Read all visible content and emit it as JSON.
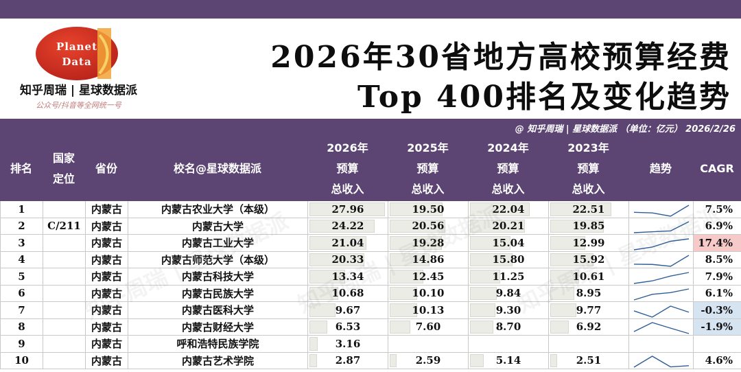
{
  "brand": {
    "logo_line1": "Planet",
    "logo_line2": "Data",
    "name": "知乎周瑞 | 星球数据派",
    "sub": "公众号/抖音等全网统一号"
  },
  "title": {
    "line1": "2026年30省地方高校预算经费",
    "line2": "Top 400排名及变化趋势"
  },
  "credit": "@ 知乎周瑞 | 星球数据派 （单位：亿元） 2026/2/26",
  "colors": {
    "header_bg": "#5c4573",
    "bar_fill": "#ecece6",
    "cagr_high": "#f7caca",
    "cagr_negative": "#d6e3f1",
    "sparkline": "#2e5e98"
  },
  "columns": [
    {
      "key": "rank",
      "lines": [
        "排名"
      ]
    },
    {
      "key": "type",
      "lines": [
        "国家",
        "定位"
      ]
    },
    {
      "key": "province",
      "lines": [
        "省份"
      ]
    },
    {
      "key": "school",
      "lines": [
        "校名@星球数据派"
      ]
    },
    {
      "key": "y2026",
      "lines": [
        "2026年",
        "预算",
        "总收入"
      ]
    },
    {
      "key": "y2025",
      "lines": [
        "2025年",
        "预算",
        "总收入"
      ]
    },
    {
      "key": "y2024",
      "lines": [
        "2024年",
        "预算",
        "总收入"
      ]
    },
    {
      "key": "y2023",
      "lines": [
        "2023年",
        "预算",
        "总收入"
      ]
    },
    {
      "key": "trend",
      "lines": [
        "趋势"
      ]
    },
    {
      "key": "cagr",
      "lines": [
        "CAGR"
      ]
    }
  ],
  "rows": [
    {
      "rank": "1",
      "type": "",
      "province": "内蒙古",
      "school": "内蒙古农业大学（本级）",
      "y2026": "27.96",
      "y2025": "19.50",
      "y2024": "22.04",
      "y2023": "22.51",
      "cagr": "7.5%",
      "cagr_style": "normal"
    },
    {
      "rank": "2",
      "type": "C/211",
      "province": "内蒙古",
      "school": "内蒙古大学",
      "y2026": "24.22",
      "y2025": "20.56",
      "y2024": "20.21",
      "y2023": "19.85",
      "cagr": "6.9%",
      "cagr_style": "normal"
    },
    {
      "rank": "3",
      "type": "",
      "province": "内蒙古",
      "school": "内蒙古工业大学",
      "y2026": "21.04",
      "y2025": "19.28",
      "y2024": "15.04",
      "y2023": "12.99",
      "cagr": "17.4%",
      "cagr_style": "high"
    },
    {
      "rank": "4",
      "type": "",
      "province": "内蒙古",
      "school": "内蒙古师范大学（本级）",
      "y2026": "20.33",
      "y2025": "14.86",
      "y2024": "15.80",
      "y2023": "15.92",
      "cagr": "8.5%",
      "cagr_style": "normal"
    },
    {
      "rank": "5",
      "type": "",
      "province": "内蒙古",
      "school": "内蒙古科技大学",
      "y2026": "13.34",
      "y2025": "12.45",
      "y2024": "11.25",
      "y2023": "10.61",
      "cagr": "7.9%",
      "cagr_style": "normal"
    },
    {
      "rank": "6",
      "type": "",
      "province": "内蒙古",
      "school": "内蒙古民族大学",
      "y2026": "10.68",
      "y2025": "10.10",
      "y2024": "9.84",
      "y2023": "8.95",
      "cagr": "6.1%",
      "cagr_style": "normal"
    },
    {
      "rank": "7",
      "type": "",
      "province": "内蒙古",
      "school": "内蒙古医科大学",
      "y2026": "9.67",
      "y2025": "10.13",
      "y2024": "9.30",
      "y2023": "9.77",
      "cagr": "-0.3%",
      "cagr_style": "negative"
    },
    {
      "rank": "8",
      "type": "",
      "province": "内蒙古",
      "school": "内蒙古财经大学",
      "y2026": "6.53",
      "y2025": "7.60",
      "y2024": "8.70",
      "y2023": "6.92",
      "cagr": "-1.9%",
      "cagr_style": "negative"
    },
    {
      "rank": "9",
      "type": "",
      "province": "内蒙古",
      "school": "呼和浩特民族学院",
      "y2026": "3.16",
      "y2025": "",
      "y2024": "",
      "y2023": "",
      "cagr": "",
      "cagr_style": "normal"
    },
    {
      "rank": "10",
      "type": "",
      "province": "内蒙古",
      "school": "内蒙古艺术学院",
      "y2026": "2.87",
      "y2025": "2.59",
      "y2024": "5.14",
      "y2023": "2.51",
      "cagr": "4.6%",
      "cagr_style": "normal"
    }
  ],
  "watermark": "知乎周瑞 | 星球数据派"
}
